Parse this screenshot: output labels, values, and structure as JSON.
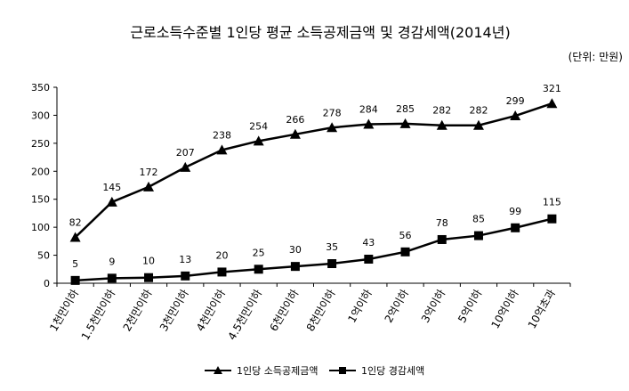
{
  "chart_data": {
    "type": "line",
    "title": "근로소득수준별 1인당 평균 소득공제금액 및 경감세액(2014년)",
    "unit_label": "(단위: 만원)",
    "categories": [
      "1천만이하",
      "1.5천만이하",
      "2천만이하",
      "3천만이하",
      "4천만이하",
      "4.5천만이하",
      "6천만이하",
      "8천만이하",
      "1억이하",
      "2억이하",
      "3억이하",
      "5억이하",
      "10억이하",
      "10억초과"
    ],
    "ylim": [
      0,
      350
    ],
    "yticks": [
      0,
      50,
      100,
      150,
      200,
      250,
      300,
      350
    ],
    "grid": false,
    "legend": "bottom-center",
    "series": [
      {
        "name": "1인당 소득공제금액",
        "marker": "triangle",
        "color": "#000000",
        "values": [
          82,
          145,
          172,
          207,
          238,
          254,
          266,
          278,
          284,
          285,
          282,
          282,
          299,
          321
        ]
      },
      {
        "name": "1인당 경감세액",
        "marker": "square",
        "color": "#000000",
        "values": [
          5,
          9,
          10,
          13,
          20,
          25,
          30,
          35,
          43,
          56,
          78,
          85,
          99,
          115
        ]
      }
    ]
  }
}
